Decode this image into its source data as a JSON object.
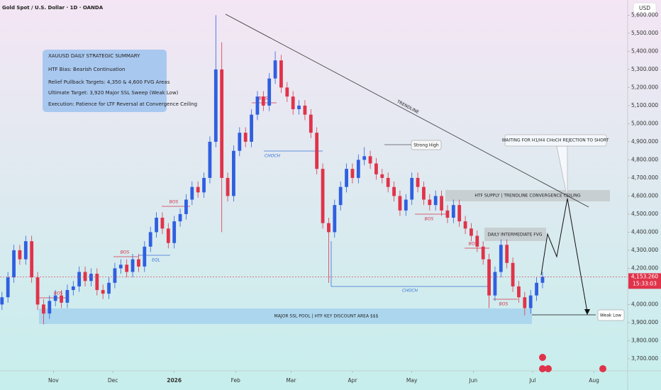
{
  "chart_data": {
    "type": "candlestick",
    "title": "Gold Spot / U.S. Dollar · 1D · OANDA",
    "currency": "USD",
    "up_color": "#2f5fe0",
    "down_color": "#e0334a",
    "x": [
      5,
      8,
      11,
      14,
      17,
      20,
      23,
      26,
      29,
      32,
      35,
      38,
      41,
      44,
      47,
      50,
      53,
      56,
      59,
      62,
      65,
      68,
      71,
      74,
      77,
      80,
      83,
      86,
      89,
      92,
      95,
      98,
      101,
      104,
      107,
      110,
      113,
      116,
      119,
      122,
      125,
      128,
      131,
      134,
      137,
      140,
      143,
      146,
      149,
      152,
      155,
      158,
      161,
      164,
      167,
      170,
      173,
      176,
      179,
      182,
      185,
      188,
      191,
      194,
      197,
      200,
      203,
      206,
      209,
      212,
      215,
      218,
      221,
      224,
      227,
      230,
      233,
      236,
      239,
      242,
      245,
      248,
      251,
      254,
      257,
      260,
      263,
      266,
      269,
      272,
      275,
      278
    ],
    "open": [
      4000,
      4040,
      4150,
      4300,
      4250,
      4350,
      4150,
      4000,
      3950,
      4020,
      4050,
      4010,
      4080,
      4100,
      4180,
      4130,
      4170,
      4080,
      4060,
      4120,
      4200,
      4220,
      4180,
      4250,
      4210,
      4320,
      4400,
      4480,
      4420,
      4340,
      4460,
      4500,
      4580,
      4650,
      4620,
      4700,
      4900,
      5300,
      4700,
      4600,
      4850,
      4950,
      4900,
      5050,
      5150,
      5100,
      5250,
      5350,
      5200,
      5150,
      5080,
      5100,
      5050,
      4950,
      4750,
      4450,
      4400,
      4550,
      4650,
      4750,
      4700,
      4800,
      4820,
      4780,
      4720,
      4700,
      4650,
      4600,
      4520,
      4580,
      4700,
      4650,
      4580,
      4550,
      4600,
      4520,
      4480,
      4550,
      4460,
      4420,
      4380,
      4320,
      4250,
      4050,
      4180,
      4330,
      4230,
      4100,
      4040,
      3980,
      4050,
      4120
    ],
    "high": [
      4070,
      4180,
      4330,
      4330,
      4380,
      4380,
      4180,
      4030,
      4050,
      4080,
      4080,
      4110,
      4130,
      4210,
      4210,
      4200,
      4200,
      4110,
      4150,
      4230,
      4250,
      4250,
      4280,
      4280,
      4350,
      4430,
      4510,
      4510,
      4450,
      4490,
      4530,
      4610,
      4680,
      4680,
      4730,
      4930,
      5600,
      5450,
      4730,
      4880,
      4980,
      4980,
      5080,
      5180,
      5180,
      5280,
      5400,
      5380,
      5230,
      5180,
      5130,
      5130,
      5080,
      4980,
      4780,
      4480,
      4580,
      4680,
      4780,
      4780,
      4830,
      4870,
      4850,
      4810,
      4750,
      4730,
      4680,
      4630,
      4610,
      4730,
      4730,
      4680,
      4610,
      4630,
      4630,
      4550,
      4580,
      4580,
      4490,
      4450,
      4410,
      4350,
      4280,
      4210,
      4360,
      4360,
      4260,
      4130,
      4070,
      4080,
      4150,
      4180
    ],
    "low": [
      3970,
      4010,
      4120,
      4220,
      4220,
      4120,
      3970,
      3890,
      3920,
      3990,
      3980,
      3980,
      4050,
      4070,
      4100,
      4100,
      4050,
      4030,
      4030,
      4090,
      4170,
      4150,
      4150,
      4180,
      4180,
      4290,
      4370,
      4390,
      4310,
      4310,
      4430,
      4470,
      4550,
      4590,
      4590,
      4670,
      4870,
      4400,
      4570,
      4570,
      4820,
      4870,
      4870,
      5020,
      5070,
      5070,
      5220,
      5170,
      5120,
      5050,
      5050,
      5020,
      4920,
      4720,
      4420,
      4120,
      4370,
      4520,
      4620,
      4670,
      4670,
      4770,
      4750,
      4690,
      4670,
      4620,
      4570,
      4490,
      4490,
      4550,
      4620,
      4550,
      4520,
      4520,
      4490,
      4450,
      4450,
      4430,
      4390,
      4350,
      4290,
      4220,
      3980,
      4020,
      4150,
      4200,
      4070,
      4010,
      3940,
      3950,
      4020,
      4090
    ],
    "close": [
      4040,
      4150,
      4300,
      4250,
      4350,
      4150,
      4000,
      3950,
      4020,
      4050,
      4010,
      4080,
      4100,
      4180,
      4130,
      4170,
      4080,
      4060,
      4120,
      4200,
      4220,
      4180,
      4250,
      4210,
      4320,
      4400,
      4480,
      4420,
      4340,
      4460,
      4500,
      4580,
      4650,
      4620,
      4700,
      4900,
      5300,
      4700,
      4600,
      4850,
      4950,
      4900,
      5050,
      5150,
      5100,
      5250,
      5350,
      5200,
      5150,
      5080,
      5100,
      5050,
      4950,
      4750,
      4450,
      4400,
      4550,
      4650,
      4750,
      4700,
      4800,
      4820,
      4780,
      4720,
      4700,
      4650,
      4600,
      4520,
      4580,
      4700,
      4650,
      4580,
      4550,
      4600,
      4520,
      4480,
      4550,
      4460,
      4420,
      4380,
      4320,
      4250,
      4050,
      4180,
      4330,
      4230,
      4100,
      4040,
      3980,
      4050,
      4120,
      4153
    ],
    "xlim": [
      4,
      321
    ],
    "xticks": [
      {
        "value": 31,
        "label": "Nov"
      },
      {
        "value": 61,
        "label": "Dec"
      },
      {
        "value": 92,
        "label": "2026"
      },
      {
        "value": 123,
        "label": "Feb"
      },
      {
        "value": 151,
        "label": "Mar"
      },
      {
        "value": 182,
        "label": "Apr"
      },
      {
        "value": 212,
        "label": "May"
      },
      {
        "value": 243,
        "label": "Jun"
      },
      {
        "value": 273,
        "label": "Jul"
      },
      {
        "value": 304,
        "label": "Aug"
      }
    ],
    "ylim": [
      3633,
      5684
    ],
    "yticks": [
      {
        "value": 3700,
        "label": "3,700.000"
      },
      {
        "value": 3800,
        "label": "3,800.000"
      },
      {
        "value": 3900,
        "label": "3,900.000"
      },
      {
        "value": 4000,
        "label": "4,000.000"
      },
      {
        "value": 4100,
        "label": "4,100.000"
      },
      {
        "value": 4200,
        "label": "4,200.000"
      },
      {
        "value": 4300,
        "label": "4,300.000"
      },
      {
        "value": 4400,
        "label": "4,400.000"
      },
      {
        "value": 4500,
        "label": "4,500.000"
      },
      {
        "value": 4600,
        "label": "4,600.000"
      },
      {
        "value": 4700,
        "label": "4,700.000"
      },
      {
        "value": 4800,
        "label": "4,800.000"
      },
      {
        "value": 4900,
        "label": "4,900.000"
      },
      {
        "value": 5000,
        "label": "5,000.000"
      },
      {
        "value": 5100,
        "label": "5,100.000"
      },
      {
        "value": 5200,
        "label": "5,200.000"
      },
      {
        "value": 5300,
        "label": "5,300.000"
      },
      {
        "value": 5400,
        "label": "5,400.000"
      },
      {
        "value": 5500,
        "label": "5,500.000"
      },
      {
        "value": 5600,
        "label": "5,600.000"
      }
    ],
    "grid": false,
    "last_price": {
      "value": 4153.26,
      "label": "4,153.260"
    },
    "countdown": "15:33:03",
    "annotations": {
      "summary": [
        "XAUUSD DAILY STRATEGIC SUMMARY",
        "HTF Bias: Bearish Continuation",
        "Relief Pullback Targets: 4,350 & 4,600 FVG Areas",
        "Ultimate Target: 3,920 Major SSL Sweep (Weak Low)",
        "Execution: Patience for LTF Reversal at Convergence Ceiling"
      ],
      "trendline": "TRENDLINE",
      "strong_high": "Strong High",
      "waiting": "WAITING FOR H1/H4 CHoCH REJECTION TO SHORT",
      "supply": "HTF SUPPLY | TRENDLINE CONVERGENCE CEILING",
      "fvg": "DAILY INTERMEDIATE FVG",
      "ssl": "MAJOR SSL POOL | HTF KEY DISCOUNT AREA $$$",
      "weak_low": "Weak Low",
      "bos": "BOS",
      "choch": "CHOCH",
      "eql": "EQL"
    }
  }
}
